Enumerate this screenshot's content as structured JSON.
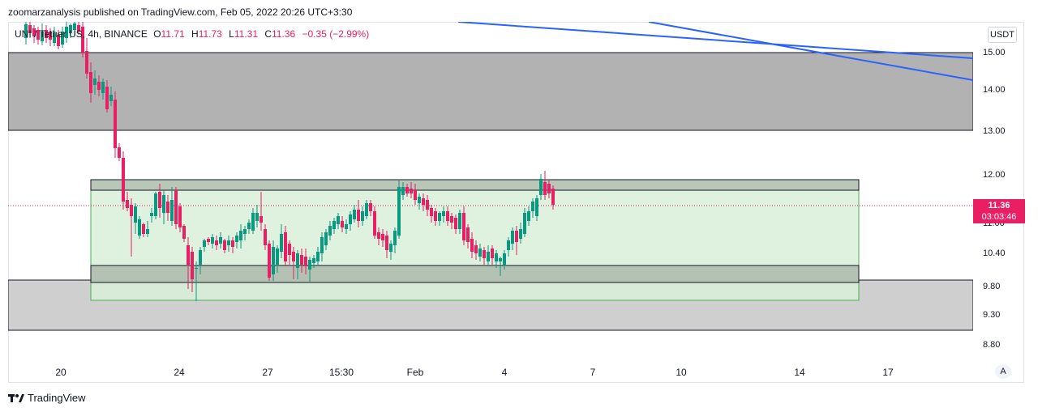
{
  "publisher_line": "zoomarzanalysis published on TradingView.com, Feb 05, 2022 20:26 UTC+3:30",
  "legend": {
    "symbol": "UNI / Tether US, 4h, BINANCE",
    "open_label": "O",
    "open": "11.71",
    "high_label": "H",
    "high": "11.73",
    "low_label": "L",
    "low": "11.31",
    "close_label": "C",
    "close": "11.36",
    "change": "−0.35 (−2.99%)"
  },
  "currency_button": "USDT",
  "price_axis": [
    "15.00",
    "14.00",
    "13.00",
    "12.00",
    "11.00",
    "10.40",
    "9.80",
    "9.30",
    "8.80"
  ],
  "last_price": {
    "value": "11.36",
    "countdown": "03:03:46"
  },
  "time_axis": [
    "20",
    "24",
    "27",
    "15:30",
    "Feb",
    "4",
    "7",
    "10",
    "14",
    "17"
  ],
  "auto_scale_button": "A",
  "brand": "TradingView",
  "colors": {
    "up": "#089981",
    "down": "#e91e63",
    "trendline": "#2962ff",
    "zone_gray": "#b2b2b2",
    "range_green": "#d9efd9"
  }
}
